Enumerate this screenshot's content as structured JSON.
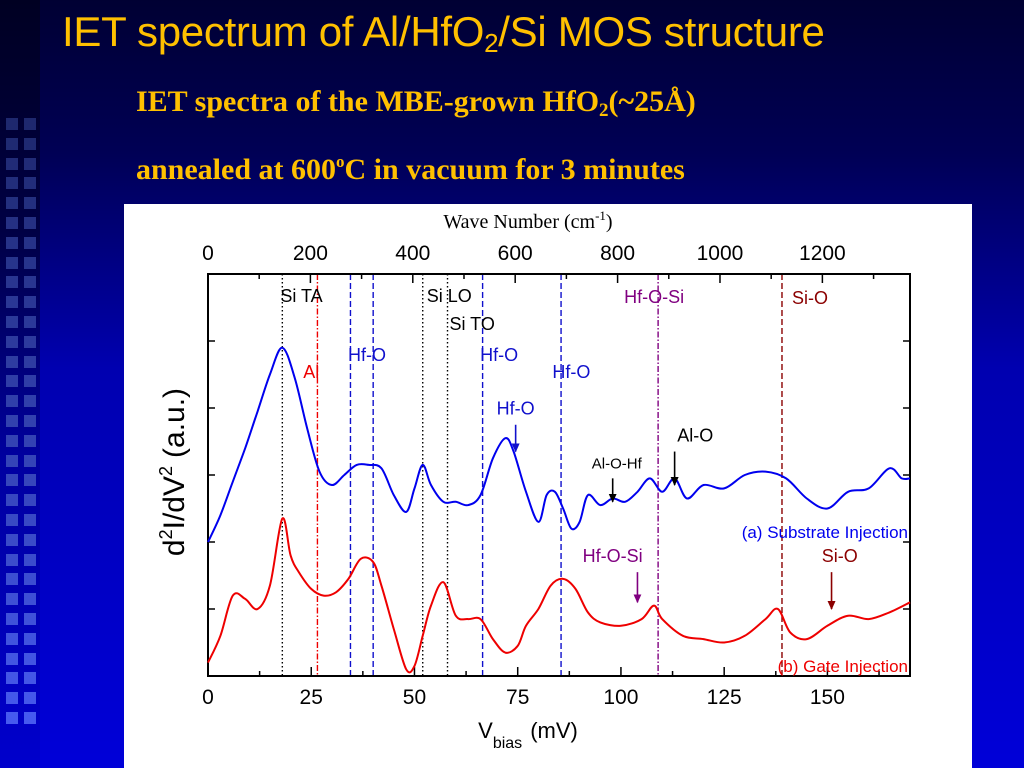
{
  "slide": {
    "title": "IET spectrum of Al/HfO",
    "title_sub": "2",
    "title_end": "/Si MOS structure",
    "subtitle_line1_a": "IET spectra of the MBE-grown HfO",
    "subtitle_line1_sub": "2",
    "subtitle_line1_b": "(~25Å)",
    "subtitle_line2_a": "annealed at 600",
    "subtitle_line2_sup": "o",
    "subtitle_line2_b": "C in vacuum for 3 minutes"
  },
  "colors": {
    "title": "#ffc000",
    "substrate": "#0000ee",
    "gate": "#ee0000",
    "al": "#ee0000",
    "hfo": "#1010cc",
    "hfosi": "#800080",
    "sio": "#8b0000",
    "axis": "#000000"
  },
  "chart_data": {
    "type": "line",
    "top_axis_title": "Wave Number (cm",
    "top_axis_title_sup": "-1",
    "top_axis_title_end": ")",
    "top_ticks": [
      0,
      200,
      400,
      600,
      800,
      1000,
      1200
    ],
    "cm_per_mV": 8.0655,
    "xlabel": "V",
    "xlabel_sub": "bias",
    "xlabel_end": "(mV)",
    "ylabel": "d",
    "ylabel_sup1": "2",
    "ylabel_mid": "I/dV",
    "ylabel_sup2": "2",
    "ylabel_end": "(a.u.)",
    "xlim": [
      0,
      170
    ],
    "ylim": [
      0,
      6
    ],
    "x_ticks": [
      0,
      25,
      50,
      75,
      100,
      125,
      150
    ],
    "reference_lines": [
      {
        "label": "Si TA",
        "x": 18,
        "style": "dotted",
        "color_key": "axis"
      },
      {
        "label": "Al",
        "x": 26.5,
        "style": "dashdot",
        "color_key": "al"
      },
      {
        "label": "Hf-O",
        "x": 34.5,
        "style": "dashed",
        "color_key": "hfo"
      },
      {
        "label": "Hf-O",
        "x": 40,
        "style": "dashed",
        "color_key": "hfo"
      },
      {
        "label": "Si LO",
        "x": 52,
        "style": "dotted",
        "color_key": "axis"
      },
      {
        "label": "Si TO",
        "x": 58,
        "style": "dotted",
        "color_key": "axis"
      },
      {
        "label": "Hf-O",
        "x": 66.5,
        "style": "dashed",
        "color_key": "hfo"
      },
      {
        "label": "Hf-O",
        "x": 85.5,
        "style": "dashed",
        "color_key": "hfo"
      },
      {
        "label": "Hf-O-Si",
        "x": 109,
        "style": "dashdot",
        "color_key": "hfosi"
      },
      {
        "label": "Si-O",
        "x": 139,
        "style": "dashed",
        "color_key": "sio"
      }
    ],
    "series": [
      {
        "name": "(a) Substrate Injection",
        "color_key": "substrate",
        "x": [
          0,
          3,
          6,
          9,
          12,
          15,
          18,
          21,
          24,
          27,
          30,
          33,
          36,
          39,
          42,
          45,
          48,
          50,
          52,
          54,
          57,
          60,
          63,
          66,
          69,
          72,
          74,
          77,
          80,
          82,
          84,
          86,
          88,
          90,
          92,
          95,
          98,
          101,
          104,
          107,
          110,
          113,
          116,
          120,
          125,
          130,
          135,
          140,
          145,
          150,
          155,
          160,
          165,
          168,
          170
        ],
        "y": [
          2.0,
          2.4,
          2.9,
          3.4,
          3.95,
          4.5,
          4.9,
          4.45,
          3.7,
          3.05,
          2.85,
          3.0,
          3.15,
          3.15,
          3.1,
          2.7,
          2.45,
          2.8,
          3.15,
          2.85,
          2.6,
          2.6,
          2.55,
          2.7,
          3.25,
          3.55,
          3.35,
          2.75,
          2.3,
          2.7,
          2.75,
          2.5,
          2.2,
          2.3,
          2.7,
          2.55,
          2.65,
          2.6,
          2.75,
          2.95,
          2.75,
          2.95,
          2.65,
          2.85,
          2.8,
          3.0,
          3.05,
          2.95,
          2.65,
          2.5,
          2.75,
          2.8,
          3.1,
          2.95,
          2.95
        ]
      },
      {
        "name": "(b) Gate Injection",
        "color_key": "gate",
        "x": [
          0,
          3,
          6,
          9,
          12,
          15,
          18,
          20,
          22,
          25,
          28,
          31,
          34,
          37,
          40,
          42,
          45,
          48,
          50,
          52,
          54,
          57,
          60,
          63,
          66,
          69,
          72,
          75,
          77,
          80,
          83,
          86,
          89,
          92,
          95,
          100,
          105,
          108,
          110,
          115,
          120,
          125,
          130,
          135,
          138,
          141,
          145,
          150,
          155,
          160,
          165,
          170
        ],
        "y": [
          0.2,
          0.6,
          1.2,
          1.15,
          1.0,
          1.35,
          2.35,
          1.8,
          1.55,
          1.3,
          1.2,
          1.25,
          1.45,
          1.75,
          1.7,
          1.35,
          0.7,
          0.1,
          0.15,
          0.6,
          1.05,
          1.4,
          0.9,
          0.85,
          0.85,
          0.55,
          0.35,
          0.45,
          0.75,
          1.0,
          1.35,
          1.45,
          1.3,
          0.95,
          0.8,
          0.75,
          0.85,
          1.05,
          0.85,
          0.6,
          0.55,
          0.5,
          0.6,
          0.85,
          1.0,
          0.65,
          0.55,
          0.75,
          0.9,
          0.85,
          0.95,
          1.1
        ]
      }
    ],
    "annotations": [
      {
        "text": "Al",
        "color_key": "al",
        "label_x": 25,
        "label_y": 4.45,
        "arrow": false
      },
      {
        "text": "Hf-O",
        "color_key": "hfo",
        "label_x": 38.5,
        "label_y": 4.7,
        "arrow": false
      },
      {
        "text": "Hf-O",
        "color_key": "hfo",
        "label_x": 70.5,
        "label_y": 4.7,
        "arrow": false
      },
      {
        "text": "Hf-O",
        "color_key": "hfo",
        "label_x": 88,
        "label_y": 4.45,
        "arrow": false
      },
      {
        "text": "Hf-O",
        "color_key": "hfo",
        "label_x": 74.5,
        "label_y": 3.9,
        "arrow": true,
        "arrow_x": 74.5,
        "arrow_from": 3.75,
        "arrow_to": 3.35
      },
      {
        "text": "Al-O",
        "color_key": "axis",
        "label_x": 118,
        "label_y": 3.5,
        "arrow": true,
        "arrow_x": 113,
        "arrow_from": 3.35,
        "arrow_to": 2.85
      },
      {
        "text": "Al-O-Hf",
        "color_key": "axis",
        "label_x": 99,
        "label_y": 3.1,
        "arrow": true,
        "arrow_x": 98,
        "arrow_from": 2.95,
        "arrow_to": 2.6
      },
      {
        "text": "Hf-O-Si",
        "color_key": "hfosi",
        "label_x": 98,
        "label_y": 1.7,
        "arrow": true,
        "arrow_x": 104,
        "arrow_from": 1.55,
        "arrow_to": 1.1
      },
      {
        "text": "Si-O",
        "color_key": "sio",
        "label_x": 153,
        "label_y": 1.7,
        "arrow": true,
        "arrow_x": 151,
        "arrow_from": 1.55,
        "arrow_to": 1.0
      }
    ],
    "legend": [
      {
        "text": "(a) Substrate Injection",
        "color_key": "substrate",
        "y": 2.15
      },
      {
        "text": "(b) Gate Injection",
        "color_key": "gate",
        "y": 0.15
      }
    ],
    "grid": false
  }
}
